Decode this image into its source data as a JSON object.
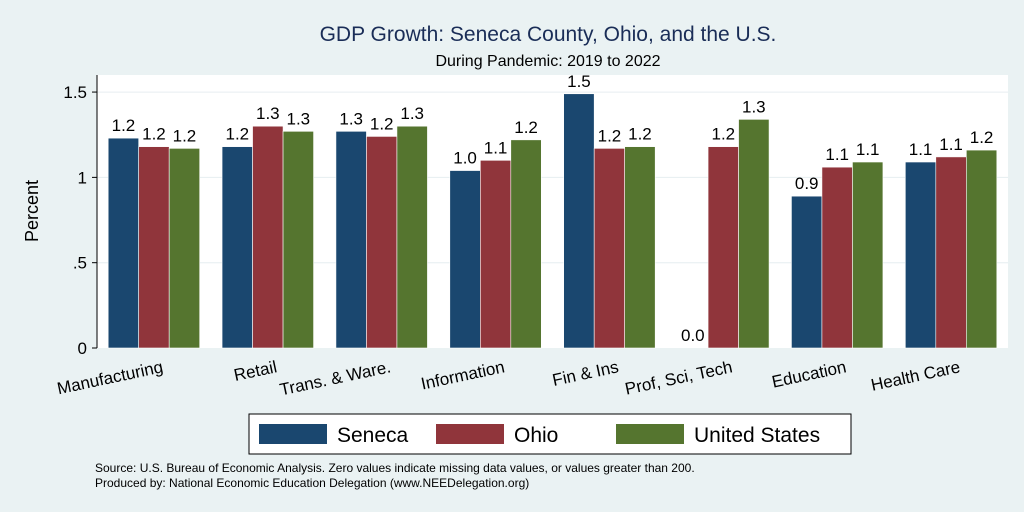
{
  "chart_data": {
    "type": "bar",
    "title": "GDP Growth: Seneca County, Ohio, and the U.S.",
    "subtitle": "During Pandemic: 2019 to 2022",
    "ylabel": "Percent",
    "xlabel": "",
    "ylim": [
      0,
      1.6
    ],
    "yticks": [
      0,
      0.5,
      1,
      1.5
    ],
    "ytick_labels": [
      "0",
      ".5",
      "1",
      "1.5"
    ],
    "grid": true,
    "legend_position": "bottom",
    "categories": [
      "Manufacturing",
      "Retail",
      "Trans. & Ware.",
      "Information",
      "Fin & Ins",
      "Prof, Sci, Tech",
      "Education",
      "Health Care"
    ],
    "series": [
      {
        "name": "Seneca",
        "color": "#1a476f",
        "values": [
          1.23,
          1.18,
          1.27,
          1.04,
          1.49,
          0.0,
          0.89,
          1.09
        ],
        "labels": [
          "1.2",
          "1.2",
          "1.3",
          "1.0",
          "1.5",
          "0.0",
          "0.9",
          "1.1"
        ]
      },
      {
        "name": "Ohio",
        "color": "#90353b",
        "values": [
          1.18,
          1.3,
          1.24,
          1.1,
          1.17,
          1.18,
          1.06,
          1.12
        ],
        "labels": [
          "1.2",
          "1.3",
          "1.2",
          "1.1",
          "1.2",
          "1.2",
          "1.1",
          "1.1"
        ]
      },
      {
        "name": "United States",
        "color": "#55752f",
        "values": [
          1.17,
          1.27,
          1.3,
          1.22,
          1.18,
          1.34,
          1.09,
          1.16
        ],
        "labels": [
          "1.2",
          "1.3",
          "1.3",
          "1.2",
          "1.2",
          "1.3",
          "1.1",
          "1.2"
        ]
      }
    ],
    "source_note": "Source: U.S. Bureau of Economic Analysis. Zero values indicate missing data values, or values greater than 200.",
    "produced_note": "Produced by: National Economic Education Delegation (www.NEEDelegation.org)"
  }
}
